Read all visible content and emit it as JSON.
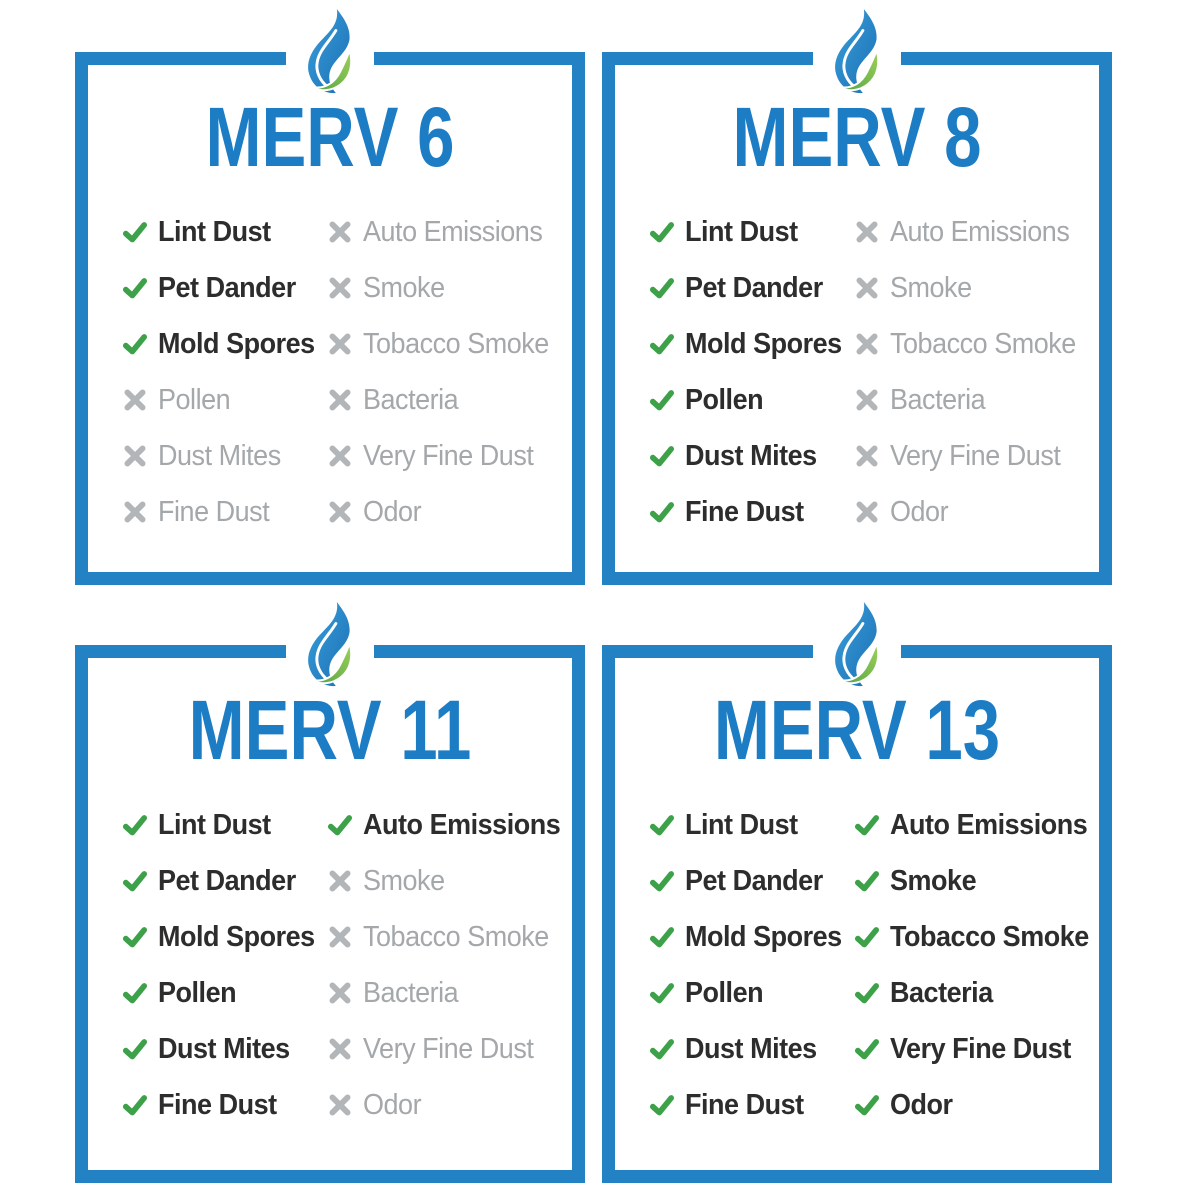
{
  "colors": {
    "border_blue": "#2382c4",
    "title_blue": "#1d7dc4",
    "check_green": "#3da14a",
    "cross_gray": "#b3b6b9",
    "checked_text": "#2d2d2d",
    "unchecked_text": "#a4a8ab",
    "logo_blue_light": "#3aa0dc",
    "logo_blue_dark": "#1b6fb3",
    "logo_green_light": "#9ed059",
    "logo_green_dark": "#55a546"
  },
  "icons": {
    "checked": "check-icon",
    "unchecked": "cross-icon"
  },
  "panels": [
    {
      "title": "MERV 6",
      "left_column": [
        {
          "label": "Lint Dust",
          "checked": true
        },
        {
          "label": "Pet Dander",
          "checked": true
        },
        {
          "label": "Mold Spores",
          "checked": true
        },
        {
          "label": "Pollen",
          "checked": false
        },
        {
          "label": "Dust Mites",
          "checked": false
        },
        {
          "label": "Fine Dust",
          "checked": false
        }
      ],
      "right_column": [
        {
          "label": "Auto Emissions",
          "checked": false
        },
        {
          "label": "Smoke",
          "checked": false
        },
        {
          "label": "Tobacco Smoke",
          "checked": false
        },
        {
          "label": "Bacteria",
          "checked": false
        },
        {
          "label": "Very Fine Dust",
          "checked": false
        },
        {
          "label": "Odor",
          "checked": false
        }
      ]
    },
    {
      "title": "MERV 8",
      "left_column": [
        {
          "label": "Lint Dust",
          "checked": true
        },
        {
          "label": "Pet Dander",
          "checked": true
        },
        {
          "label": "Mold Spores",
          "checked": true
        },
        {
          "label": "Pollen",
          "checked": true
        },
        {
          "label": "Dust Mites",
          "checked": true
        },
        {
          "label": "Fine Dust",
          "checked": true
        }
      ],
      "right_column": [
        {
          "label": "Auto Emissions",
          "checked": false
        },
        {
          "label": "Smoke",
          "checked": false
        },
        {
          "label": "Tobacco Smoke",
          "checked": false
        },
        {
          "label": "Bacteria",
          "checked": false
        },
        {
          "label": "Very Fine Dust",
          "checked": false
        },
        {
          "label": "Odor",
          "checked": false
        }
      ]
    },
    {
      "title": "MERV 11",
      "left_column": [
        {
          "label": "Lint Dust",
          "checked": true
        },
        {
          "label": "Pet Dander",
          "checked": true
        },
        {
          "label": "Mold Spores",
          "checked": true
        },
        {
          "label": "Pollen",
          "checked": true
        },
        {
          "label": "Dust Mites",
          "checked": true
        },
        {
          "label": "Fine Dust",
          "checked": true
        }
      ],
      "right_column": [
        {
          "label": "Auto Emissions",
          "checked": true
        },
        {
          "label": "Smoke",
          "checked": false
        },
        {
          "label": "Tobacco Smoke",
          "checked": false
        },
        {
          "label": "Bacteria",
          "checked": false
        },
        {
          "label": "Very Fine Dust",
          "checked": false
        },
        {
          "label": "Odor",
          "checked": false
        }
      ]
    },
    {
      "title": "MERV 13",
      "left_column": [
        {
          "label": "Lint Dust",
          "checked": true
        },
        {
          "label": "Pet Dander",
          "checked": true
        },
        {
          "label": "Mold Spores",
          "checked": true
        },
        {
          "label": "Pollen",
          "checked": true
        },
        {
          "label": "Dust Mites",
          "checked": true
        },
        {
          "label": "Fine Dust",
          "checked": true
        }
      ],
      "right_column": [
        {
          "label": "Auto Emissions",
          "checked": true
        },
        {
          "label": "Smoke",
          "checked": true
        },
        {
          "label": "Tobacco Smoke",
          "checked": true
        },
        {
          "label": "Bacteria",
          "checked": true
        },
        {
          "label": "Very Fine Dust",
          "checked": true
        },
        {
          "label": "Odor",
          "checked": true
        }
      ]
    }
  ]
}
